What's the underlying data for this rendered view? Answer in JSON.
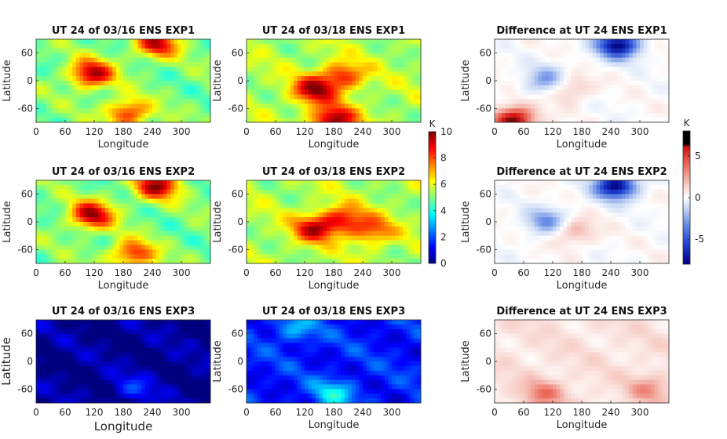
{
  "colors": {
    "jet": [
      "#00007f",
      "#0000ff",
      "#007fff",
      "#00ffff",
      "#7fff7f",
      "#ffff00",
      "#ff7f00",
      "#ff0000",
      "#7f0000"
    ],
    "diverging": [
      "#000080",
      "#2040d0",
      "#6a8ee6",
      "#c6d6f4",
      "#ffffff",
      "#f6c8c0",
      "#ec6a5c",
      "#d01010",
      "#000000"
    ]
  },
  "chart_data": [
    {
      "type": "heatmap",
      "title": "UT 24 of 03/16 ENS EXP1",
      "xlabel": "Longitude",
      "ylabel": "Latitude",
      "xticks": [
        "0",
        "60",
        "120",
        "180",
        "240",
        "300"
      ],
      "yticks": [
        "60",
        "0",
        "-60"
      ],
      "xlim": [
        0,
        360
      ],
      "ylim": [
        -90,
        90
      ],
      "colormap": "jet",
      "hot_spots": [
        {
          "lon": 115,
          "lat": 15,
          "value": 9.5
        },
        {
          "lon": 250,
          "lat": 80,
          "value": 9
        },
        {
          "lon": 190,
          "lat": -70,
          "value": 8.5
        }
      ],
      "background_value": 5
    },
    {
      "type": "heatmap",
      "title": "UT 24 of 03/18 ENS EXP1",
      "xlabel": "Longitude",
      "ylabel": "Latitude",
      "xticks": [
        "0",
        "60",
        "120",
        "180",
        "240",
        "300"
      ],
      "yticks": [
        "60",
        "0",
        "-60"
      ],
      "xlim": [
        0,
        360
      ],
      "ylim": [
        -90,
        90
      ],
      "colormap": "jet",
      "hot_spots": [
        {
          "lon": 140,
          "lat": -20,
          "value": 9.5
        },
        {
          "lon": 200,
          "lat": 10,
          "value": 8.5
        },
        {
          "lon": 180,
          "lat": -85,
          "value": 10
        }
      ],
      "background_value": 5.5
    },
    {
      "type": "heatmap",
      "title": "Difference at UT 24 ENS EXP1",
      "xlabel": "Longitude",
      "ylabel": "Latitude",
      "xticks": [
        "0",
        "60",
        "120",
        "180",
        "240",
        "300"
      ],
      "yticks": [
        "60",
        "0",
        "-60"
      ],
      "xlim": [
        0,
        360
      ],
      "ylim": [
        -90,
        90
      ],
      "colormap": "diverging",
      "hot_spots": [
        {
          "lon": 255,
          "lat": 78,
          "value": -8
        },
        {
          "lon": 110,
          "lat": 0,
          "value": -4
        },
        {
          "lon": 150,
          "lat": -15,
          "value": 3
        },
        {
          "lon": 40,
          "lat": -85,
          "value": 7
        }
      ],
      "background_value": 0
    },
    {
      "type": "heatmap",
      "title": "UT 24 of 03/16 ENS EXP2",
      "xlabel": "Longitude",
      "ylabel": "Latitude",
      "xticks": [
        "0",
        "60",
        "120",
        "180",
        "240",
        "300"
      ],
      "yticks": [
        "60",
        "0",
        "-60"
      ],
      "xlim": [
        0,
        360
      ],
      "ylim": [
        -90,
        90
      ],
      "colormap": "jet",
      "hot_spots": [
        {
          "lon": 115,
          "lat": 15,
          "value": 9.5
        },
        {
          "lon": 250,
          "lat": 78,
          "value": 9.5
        },
        {
          "lon": 200,
          "lat": -70,
          "value": 8.5
        }
      ],
      "background_value": 5
    },
    {
      "type": "heatmap",
      "title": "UT 24 of 03/18 ENS EXP2",
      "xlabel": "Longitude",
      "ylabel": "Latitude",
      "xticks": [
        "0",
        "60",
        "120",
        "180",
        "240",
        "300"
      ],
      "yticks": [
        "60",
        "0",
        "-60"
      ],
      "xlim": [
        0,
        360
      ],
      "ylim": [
        -90,
        90
      ],
      "colormap": "jet",
      "hot_spots": [
        {
          "lon": 140,
          "lat": -15,
          "value": 9
        },
        {
          "lon": 200,
          "lat": 5,
          "value": 8.5
        },
        {
          "lon": 260,
          "lat": -20,
          "value": 8
        }
      ],
      "background_value": 5.5
    },
    {
      "type": "heatmap",
      "title": "Difference at UT 24 ENS EXP2",
      "xlabel": "Longitude",
      "ylabel": "Latitude",
      "xticks": [
        "0",
        "60",
        "120",
        "180",
        "240",
        "300"
      ],
      "yticks": [
        "60",
        "0",
        "-60"
      ],
      "xlim": [
        0,
        360
      ],
      "ylim": [
        -90,
        90
      ],
      "colormap": "diverging",
      "hot_spots": [
        {
          "lon": 250,
          "lat": 78,
          "value": -8
        },
        {
          "lon": 110,
          "lat": 0,
          "value": -4
        },
        {
          "lon": 160,
          "lat": -20,
          "value": 3
        }
      ],
      "background_value": 0
    },
    {
      "type": "heatmap",
      "title": "UT 24 of 03/16 ENS EXP3",
      "xlabel": "Longitude",
      "ylabel": "Latitude",
      "xticks": [
        "0",
        "60",
        "120",
        "180",
        "240",
        "300"
      ],
      "yticks": [
        "60",
        "0",
        "-60"
      ],
      "xlim": [
        0,
        360
      ],
      "ylim": [
        -90,
        90
      ],
      "colormap": "jet",
      "hot_spots": [
        {
          "lon": 200,
          "lat": -60,
          "value": 1.5
        }
      ],
      "background_value": 0.2
    },
    {
      "type": "heatmap",
      "title": "UT 24 of 03/18 ENS EXP3",
      "xlabel": "Longitude",
      "ylabel": "Latitude",
      "xticks": [
        "0",
        "60",
        "120",
        "180",
        "240",
        "300"
      ],
      "yticks": [
        "60",
        "0",
        "-60"
      ],
      "xlim": [
        0,
        360
      ],
      "ylim": [
        -90,
        90
      ],
      "colormap": "jet",
      "hot_spots": [
        {
          "lon": 100,
          "lat": 70,
          "value": 3
        },
        {
          "lon": 180,
          "lat": -70,
          "value": 3.5
        }
      ],
      "background_value": 1.5
    },
    {
      "type": "heatmap",
      "title": "Difference at UT 24 ENS EXP3",
      "xlabel": "Longitude",
      "ylabel": "Latitude",
      "xticks": [
        "0",
        "60",
        "120",
        "180",
        "240",
        "300"
      ],
      "yticks": [
        "60",
        "0",
        "-60"
      ],
      "xlim": [
        0,
        360
      ],
      "ylim": [
        -90,
        90
      ],
      "colormap": "diverging",
      "hot_spots": [
        {
          "lon": 100,
          "lat": -70,
          "value": 3.5
        },
        {
          "lon": 320,
          "lat": -60,
          "value": 3
        }
      ],
      "background_value": 1
    }
  ],
  "colorbars": [
    {
      "unit": "K",
      "ticks": [
        "10",
        "8",
        "6",
        "4",
        "2",
        "0"
      ],
      "range": [
        0,
        10
      ],
      "colormap": "jet"
    },
    {
      "unit": "K",
      "ticks": [
        "5",
        "0",
        "-5"
      ],
      "range": [
        -8,
        8
      ],
      "colormap": "diverging"
    }
  ]
}
